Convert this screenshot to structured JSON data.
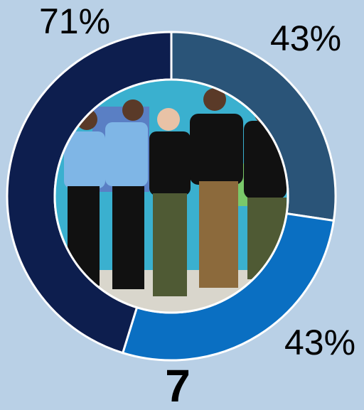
{
  "chart_data": {
    "type": "pie",
    "donut": true,
    "values": [
      43,
      43,
      71
    ],
    "value_labels": [
      "43%",
      "43%",
      "71%"
    ],
    "colors": [
      "#2a5478",
      "#0a6fc2",
      "#0d1e4e"
    ],
    "annotation": "7"
  }
}
